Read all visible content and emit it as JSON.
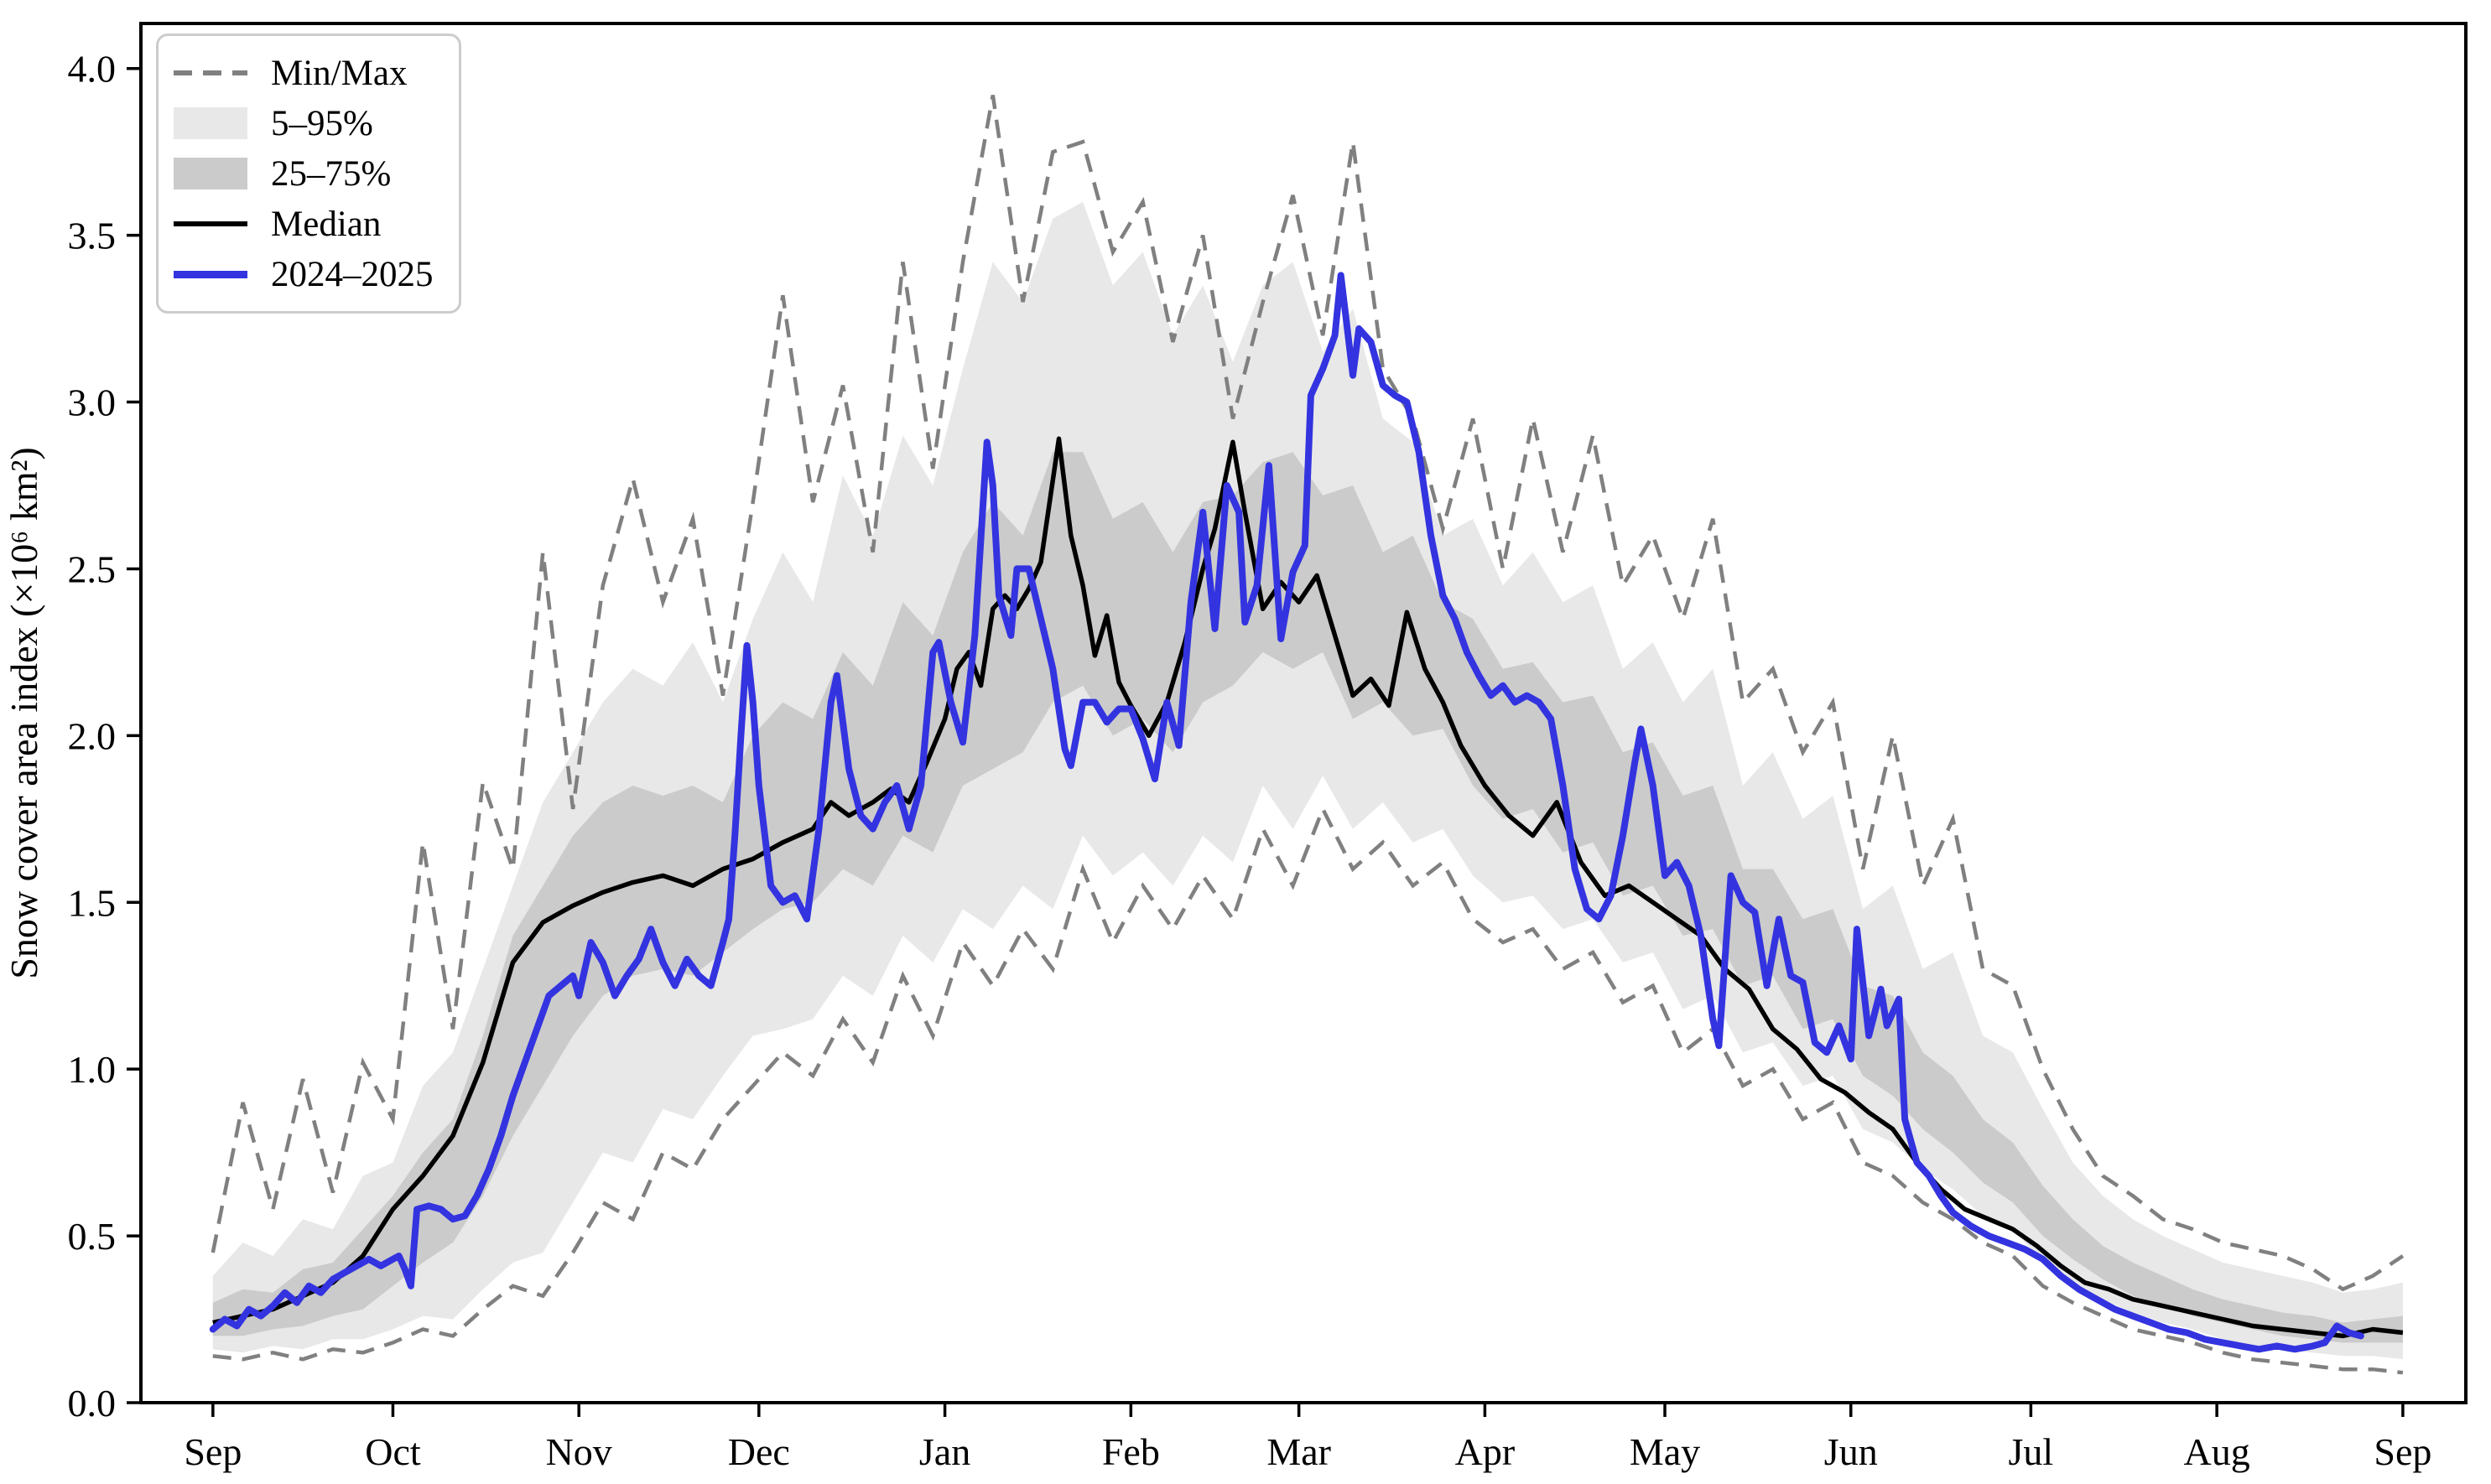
{
  "chart_data": {
    "type": "line",
    "title": "",
    "xlabel": "",
    "ylabel": "Snow cover area index (×10⁶ km²)",
    "x_unit": "days since Sep 1",
    "xlim": [
      -12,
      375.5
    ],
    "ylim": [
      0,
      4.135
    ],
    "grid": false,
    "legend_position": "upper-left",
    "colors": {
      "band_outer": "#e8e8e8",
      "band_inner": "#cbcbcb",
      "minmax": "#808080",
      "median": "#000000",
      "current": "#3333e0",
      "spine": "#000000"
    },
    "yticks": {
      "values": [
        0,
        0.5,
        1.0,
        1.5,
        2.0,
        2.5,
        3.0,
        3.5,
        4.0
      ],
      "labels": [
        "0.0",
        "0.5",
        "1.0",
        "1.5",
        "2.0",
        "2.5",
        "3.0",
        "3.5",
        "4.0"
      ]
    },
    "xticks": {
      "days": [
        0,
        30,
        61,
        91,
        122,
        153,
        181,
        212,
        242,
        273,
        303,
        334,
        365
      ],
      "labels": [
        "Sep",
        "Oct",
        "Nov",
        "Dec",
        "Jan",
        "Feb",
        "Mar",
        "Apr",
        "May",
        "Jun",
        "Jul",
        "Aug",
        "Sep"
      ]
    },
    "legend": [
      {
        "id": "minmax",
        "label": "Min/Max"
      },
      {
        "id": "p5_95",
        "label": "5–95%"
      },
      {
        "id": "p25_75",
        "label": "25–75%"
      },
      {
        "id": "median",
        "label": "Median"
      },
      {
        "id": "current",
        "label": "2024–2025"
      }
    ],
    "grid_days": [
      0,
      5,
      10,
      15,
      20,
      25,
      30,
      35,
      40,
      45,
      50,
      55,
      60,
      65,
      70,
      75,
      80,
      85,
      90,
      95,
      100,
      105,
      110,
      115,
      120,
      125,
      130,
      135,
      140,
      145,
      150,
      155,
      160,
      165,
      170,
      175,
      180,
      185,
      190,
      195,
      200,
      205,
      210,
      215,
      220,
      225,
      230,
      235,
      240,
      245,
      250,
      255,
      260,
      265,
      270,
      275,
      280,
      285,
      290,
      295,
      300,
      305,
      310,
      315,
      320,
      325,
      330,
      335,
      340,
      345,
      350,
      355,
      360,
      365
    ],
    "series": {
      "minmax": {
        "min": [
          0.14,
          0.13,
          0.15,
          0.13,
          0.16,
          0.15,
          0.18,
          0.22,
          0.2,
          0.28,
          0.35,
          0.32,
          0.45,
          0.6,
          0.55,
          0.75,
          0.7,
          0.85,
          0.95,
          1.05,
          0.98,
          1.15,
          1.02,
          1.28,
          1.1,
          1.38,
          1.25,
          1.42,
          1.3,
          1.6,
          1.38,
          1.55,
          1.42,
          1.58,
          1.45,
          1.72,
          1.55,
          1.78,
          1.6,
          1.68,
          1.55,
          1.62,
          1.45,
          1.38,
          1.42,
          1.3,
          1.35,
          1.2,
          1.25,
          1.05,
          1.12,
          0.95,
          1.0,
          0.85,
          0.9,
          0.72,
          0.68,
          0.6,
          0.55,
          0.48,
          0.44,
          0.35,
          0.3,
          0.26,
          0.22,
          0.2,
          0.18,
          0.15,
          0.13,
          0.12,
          0.11,
          0.1,
          0.1,
          0.09
        ],
        "max": [
          0.45,
          0.9,
          0.58,
          0.97,
          0.63,
          1.02,
          0.85,
          1.68,
          1.12,
          1.86,
          1.6,
          2.55,
          1.78,
          2.45,
          2.77,
          2.4,
          2.65,
          2.12,
          2.7,
          3.32,
          2.7,
          3.05,
          2.55,
          3.42,
          2.8,
          3.42,
          3.92,
          3.3,
          3.75,
          3.78,
          3.45,
          3.6,
          3.18,
          3.5,
          2.95,
          3.3,
          3.62,
          3.2,
          3.78,
          3.1,
          2.95,
          2.62,
          2.95,
          2.5,
          2.95,
          2.55,
          2.9,
          2.45,
          2.6,
          2.35,
          2.65,
          2.1,
          2.2,
          1.95,
          2.1,
          1.6,
          2.0,
          1.55,
          1.75,
          1.3,
          1.25,
          1.0,
          0.82,
          0.68,
          0.62,
          0.55,
          0.52,
          0.48,
          0.46,
          0.44,
          0.4,
          0.34,
          0.38,
          0.44
        ]
      },
      "band_5_95": {
        "lower": [
          0.16,
          0.15,
          0.17,
          0.16,
          0.19,
          0.19,
          0.22,
          0.26,
          0.25,
          0.34,
          0.42,
          0.45,
          0.6,
          0.75,
          0.72,
          0.88,
          0.85,
          0.98,
          1.1,
          1.12,
          1.15,
          1.28,
          1.22,
          1.4,
          1.32,
          1.48,
          1.42,
          1.55,
          1.48,
          1.7,
          1.58,
          1.65,
          1.55,
          1.7,
          1.62,
          1.85,
          1.72,
          1.88,
          1.72,
          1.8,
          1.68,
          1.72,
          1.58,
          1.5,
          1.52,
          1.42,
          1.45,
          1.32,
          1.35,
          1.18,
          1.22,
          1.05,
          1.08,
          0.95,
          0.98,
          0.82,
          0.78,
          0.7,
          0.64,
          0.56,
          0.52,
          0.42,
          0.36,
          0.31,
          0.27,
          0.24,
          0.22,
          0.19,
          0.17,
          0.16,
          0.15,
          0.14,
          0.14,
          0.13
        ],
        "upper": [
          0.38,
          0.48,
          0.44,
          0.55,
          0.52,
          0.68,
          0.72,
          0.95,
          1.05,
          1.3,
          1.55,
          1.8,
          1.95,
          2.1,
          2.2,
          2.15,
          2.28,
          2.1,
          2.35,
          2.55,
          2.4,
          2.78,
          2.6,
          2.9,
          2.75,
          3.1,
          3.42,
          3.3,
          3.55,
          3.6,
          3.35,
          3.45,
          3.2,
          3.35,
          3.12,
          3.35,
          3.42,
          3.15,
          3.28,
          2.95,
          2.88,
          2.6,
          2.65,
          2.45,
          2.55,
          2.4,
          2.45,
          2.2,
          2.28,
          2.1,
          2.2,
          1.85,
          1.95,
          1.75,
          1.82,
          1.48,
          1.55,
          1.3,
          1.35,
          1.1,
          1.05,
          0.88,
          0.72,
          0.62,
          0.55,
          0.5,
          0.46,
          0.42,
          0.4,
          0.38,
          0.36,
          0.33,
          0.34,
          0.36
        ]
      },
      "band_25_75": {
        "lower": [
          0.2,
          0.2,
          0.22,
          0.23,
          0.26,
          0.28,
          0.35,
          0.42,
          0.48,
          0.62,
          0.8,
          0.95,
          1.1,
          1.22,
          1.28,
          1.3,
          1.28,
          1.35,
          1.42,
          1.48,
          1.5,
          1.6,
          1.55,
          1.7,
          1.65,
          1.85,
          1.9,
          1.95,
          2.1,
          2.15,
          2.0,
          2.05,
          1.95,
          2.1,
          2.15,
          2.25,
          2.2,
          2.25,
          2.05,
          2.1,
          2.0,
          2.02,
          1.85,
          1.75,
          1.78,
          1.65,
          1.68,
          1.52,
          1.55,
          1.4,
          1.42,
          1.25,
          1.28,
          1.12,
          1.15,
          0.98,
          0.92,
          0.82,
          0.75,
          0.66,
          0.6,
          0.5,
          0.43,
          0.37,
          0.32,
          0.29,
          0.26,
          0.24,
          0.22,
          0.2,
          0.19,
          0.18,
          0.18,
          0.18
        ],
        "upper": [
          0.3,
          0.34,
          0.33,
          0.4,
          0.42,
          0.52,
          0.62,
          0.75,
          0.85,
          1.1,
          1.4,
          1.55,
          1.7,
          1.8,
          1.85,
          1.82,
          1.85,
          1.8,
          2.0,
          2.1,
          2.05,
          2.25,
          2.15,
          2.4,
          2.3,
          2.55,
          2.7,
          2.6,
          2.85,
          2.85,
          2.65,
          2.7,
          2.55,
          2.7,
          2.72,
          2.82,
          2.85,
          2.72,
          2.75,
          2.55,
          2.6,
          2.4,
          2.35,
          2.2,
          2.22,
          2.1,
          2.12,
          1.95,
          1.98,
          1.82,
          1.85,
          1.6,
          1.6,
          1.45,
          1.48,
          1.25,
          1.22,
          1.05,
          0.98,
          0.85,
          0.78,
          0.65,
          0.55,
          0.47,
          0.42,
          0.38,
          0.34,
          0.31,
          0.29,
          0.27,
          0.26,
          0.24,
          0.25,
          0.26
        ]
      },
      "median": {
        "days": [
          0,
          5,
          10,
          15,
          20,
          25,
          30,
          35,
          40,
          45,
          50,
          55,
          60,
          65,
          70,
          75,
          80,
          85,
          90,
          95,
          100,
          103,
          106,
          110,
          113,
          116,
          119,
          122,
          124,
          126,
          128,
          130,
          132,
          134,
          136,
          138,
          141,
          143,
          145,
          147,
          149,
          151,
          153,
          156,
          159,
          162,
          165,
          167,
          170,
          172,
          175,
          178,
          181,
          184,
          187,
          190,
          193,
          196,
          199,
          202,
          205,
          208,
          212,
          216,
          220,
          224,
          228,
          232,
          236,
          240,
          244,
          248,
          252,
          256,
          260,
          264,
          268,
          272,
          276,
          280,
          284,
          288,
          292,
          296,
          300,
          304,
          308,
          312,
          316,
          320,
          325,
          330,
          335,
          340,
          345,
          350,
          355,
          360,
          365
        ],
        "values": [
          0.24,
          0.26,
          0.28,
          0.32,
          0.36,
          0.44,
          0.58,
          0.68,
          0.8,
          1.02,
          1.32,
          1.44,
          1.49,
          1.53,
          1.56,
          1.58,
          1.55,
          1.6,
          1.63,
          1.68,
          1.72,
          1.8,
          1.76,
          1.8,
          1.84,
          1.8,
          1.92,
          2.05,
          2.2,
          2.25,
          2.15,
          2.38,
          2.42,
          2.38,
          2.44,
          2.52,
          2.89,
          2.6,
          2.45,
          2.24,
          2.36,
          2.16,
          2.09,
          2.0,
          2.1,
          2.28,
          2.5,
          2.62,
          2.88,
          2.67,
          2.38,
          2.46,
          2.4,
          2.48,
          2.3,
          2.12,
          2.17,
          2.09,
          2.37,
          2.2,
          2.1,
          1.97,
          1.85,
          1.76,
          1.7,
          1.8,
          1.62,
          1.52,
          1.55,
          1.5,
          1.45,
          1.4,
          1.3,
          1.24,
          1.12,
          1.06,
          0.97,
          0.93,
          0.87,
          0.82,
          0.72,
          0.64,
          0.58,
          0.55,
          0.52,
          0.47,
          0.41,
          0.36,
          0.34,
          0.31,
          0.29,
          0.27,
          0.25,
          0.23,
          0.22,
          0.21,
          0.2,
          0.22,
          0.21
        ]
      },
      "season_2024_2025": {
        "label": "2024–2025",
        "days": [
          0,
          2,
          4,
          6,
          8,
          10,
          12,
          14,
          16,
          18,
          20,
          22,
          24,
          26,
          28,
          30,
          31,
          32,
          33,
          34,
          36,
          38,
          40,
          42,
          44,
          46,
          48,
          50,
          52,
          54,
          56,
          58,
          60,
          61,
          63,
          65,
          67,
          69,
          71,
          73,
          75,
          77,
          79,
          81,
          83,
          85,
          86,
          87,
          88,
          89,
          90,
          91,
          93,
          95,
          97,
          99,
          101,
          103,
          104,
          106,
          108,
          110,
          112,
          114,
          116,
          118,
          120,
          121,
          123,
          125,
          127,
          129,
          130,
          131,
          133,
          134,
          136,
          138,
          140,
          142,
          143,
          145,
          147,
          149,
          151,
          153,
          155,
          157,
          159,
          161,
          163,
          165,
          167,
          169,
          171,
          172,
          174,
          176,
          178,
          180,
          182,
          183,
          185,
          187,
          188,
          190,
          191,
          193,
          195,
          197,
          199,
          201,
          203,
          205,
          207,
          209,
          211,
          213,
          215,
          217,
          219,
          221,
          223,
          225,
          227,
          229,
          231,
          233,
          235,
          237,
          238,
          240,
          242,
          244,
          246,
          248,
          250,
          251,
          253,
          255,
          257,
          259,
          261,
          263,
          265,
          267,
          269,
          271,
          273,
          274,
          276,
          278,
          279,
          281,
          282,
          284,
          286,
          288,
          290,
          293,
          296,
          299,
          302,
          305,
          308,
          311,
          314,
          317,
          320,
          323,
          326,
          329,
          332,
          335,
          338,
          341,
          344,
          347,
          350,
          352,
          354,
          356,
          358
        ],
        "values": [
          0.22,
          0.25,
          0.23,
          0.28,
          0.26,
          0.29,
          0.33,
          0.3,
          0.35,
          0.33,
          0.37,
          0.39,
          0.41,
          0.43,
          0.41,
          0.43,
          0.44,
          0.4,
          0.35,
          0.58,
          0.59,
          0.58,
          0.55,
          0.56,
          0.62,
          0.7,
          0.8,
          0.92,
          1.02,
          1.12,
          1.22,
          1.25,
          1.28,
          1.22,
          1.38,
          1.32,
          1.22,
          1.28,
          1.33,
          1.42,
          1.32,
          1.25,
          1.33,
          1.28,
          1.25,
          1.38,
          1.45,
          1.7,
          2.0,
          2.27,
          2.1,
          1.85,
          1.55,
          1.5,
          1.52,
          1.45,
          1.72,
          2.1,
          2.18,
          1.9,
          1.76,
          1.72,
          1.8,
          1.85,
          1.72,
          1.85,
          2.25,
          2.28,
          2.1,
          1.98,
          2.3,
          2.88,
          2.75,
          2.42,
          2.3,
          2.5,
          2.5,
          2.35,
          2.2,
          1.96,
          1.91,
          2.1,
          2.1,
          2.04,
          2.08,
          2.08,
          1.99,
          1.87,
          2.1,
          1.97,
          2.4,
          2.67,
          2.32,
          2.75,
          2.67,
          2.34,
          2.45,
          2.81,
          2.29,
          2.49,
          2.57,
          3.02,
          3.1,
          3.2,
          3.38,
          3.08,
          3.22,
          3.18,
          3.05,
          3.02,
          3.0,
          2.85,
          2.6,
          2.42,
          2.35,
          2.25,
          2.18,
          2.12,
          2.15,
          2.1,
          2.12,
          2.1,
          2.05,
          1.85,
          1.6,
          1.48,
          1.45,
          1.52,
          1.7,
          1.92,
          2.02,
          1.85,
          1.58,
          1.62,
          1.55,
          1.4,
          1.15,
          1.07,
          1.58,
          1.5,
          1.47,
          1.25,
          1.45,
          1.28,
          1.26,
          1.08,
          1.05,
          1.13,
          1.03,
          1.42,
          1.1,
          1.24,
          1.13,
          1.21,
          0.85,
          0.72,
          0.68,
          0.62,
          0.57,
          0.53,
          0.5,
          0.48,
          0.46,
          0.43,
          0.38,
          0.34,
          0.31,
          0.28,
          0.26,
          0.24,
          0.22,
          0.21,
          0.19,
          0.18,
          0.17,
          0.16,
          0.17,
          0.16,
          0.17,
          0.18,
          0.23,
          0.21,
          0.2
        ]
      }
    }
  }
}
